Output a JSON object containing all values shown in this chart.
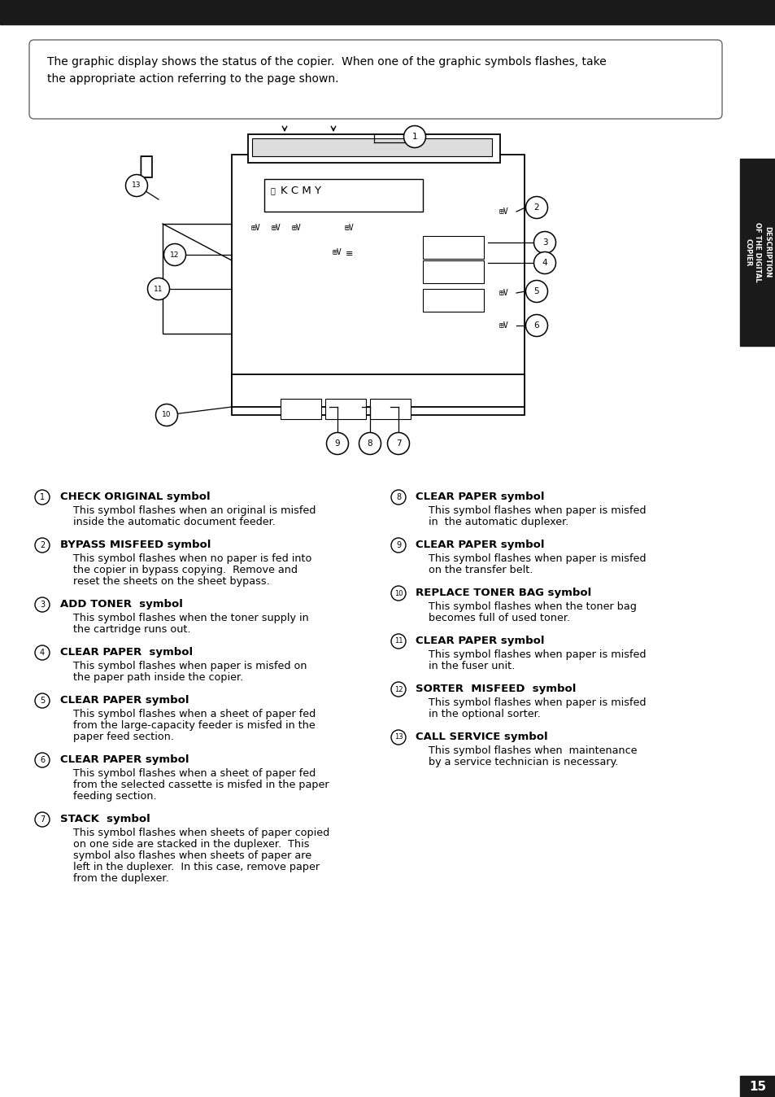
{
  "bg_color": "#ffffff",
  "header_bar_color": "#1a1a1a",
  "intro_text": "The graphic display shows the status of the copier.  When one of the graphic symbols flashes, take\nthe appropriate action referring to the page shown.",
  "page_number": "15",
  "sidebar_color": "#1a1a1a",
  "sidebar_text": "DESCRIPTION\nOF THE DIGITAL\nCOPIER",
  "items_left": [
    {
      "num": "1",
      "title": "CHECK ORIGINAL symbol",
      "body": "This symbol flashes when an original is misfed\ninside the automatic document feeder."
    },
    {
      "num": "2",
      "title": "BYPASS MISFEED symbol",
      "body": "This symbol flashes when no paper is fed into\nthe copier in bypass copying.  Remove and\nreset the sheets on the sheet bypass."
    },
    {
      "num": "3",
      "title": "ADD TONER  symbol",
      "body": "This symbol flashes when the toner supply in\nthe cartridge runs out."
    },
    {
      "num": "4",
      "title": "CLEAR PAPER  symbol",
      "body": "This symbol flashes when paper is misfed on\nthe paper path inside the copier."
    },
    {
      "num": "5",
      "title": "CLEAR PAPER symbol",
      "body": "This symbol flashes when a sheet of paper fed\nfrom the large-capacity feeder is misfed in the\npaper feed section."
    },
    {
      "num": "6",
      "title": "CLEAR PAPER symbol",
      "body": "This symbol flashes when a sheet of paper fed\nfrom the selected cassette is misfed in the paper\nfeeding section."
    },
    {
      "num": "7",
      "title": "STACK  symbol",
      "body": "This symbol flashes when sheets of paper copied\non one side are stacked in the duplexer.  This\nsymbol also flashes when sheets of paper are\nleft in the duplexer.  In this case, remove paper\nfrom the duplexer."
    }
  ],
  "items_right": [
    {
      "num": "8",
      "title": "CLEAR PAPER symbol",
      "body": "This symbol flashes when paper is misfed\nin  the automatic duplexer."
    },
    {
      "num": "9",
      "title": "CLEAR PAPER symbol",
      "body": "This symbol flashes when paper is misfed\non the transfer belt."
    },
    {
      "num": "10",
      "title": "REPLACE TONER BAG symbol",
      "body": "This symbol flashes when the toner bag\nbecomes full of used toner."
    },
    {
      "num": "11",
      "title": "CLEAR PAPER symbol",
      "body": "This symbol flashes when paper is misfed\nin the fuser unit."
    },
    {
      "num": "12",
      "title": "SORTER  MISFEED  symbol",
      "body": "This symbol flashes when paper is misfed\nin the optional sorter."
    },
    {
      "num": "13",
      "title": "CALL SERVICE symbol",
      "body": "This symbol flashes when  maintenance\nby a service technician is necessary."
    }
  ]
}
